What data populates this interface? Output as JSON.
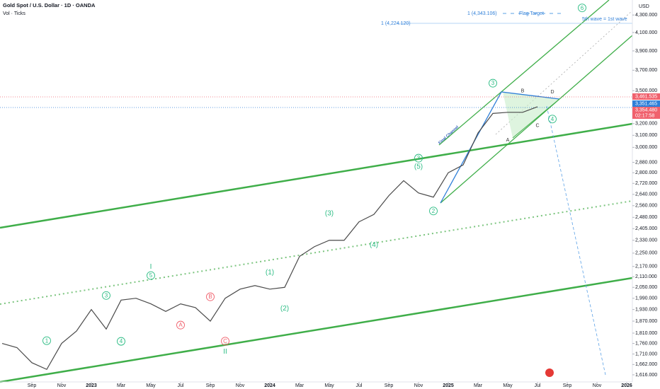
{
  "chart_data": {
    "type": "line",
    "title": "Gold Spot / U.S. Dollar · 1D · OANDA",
    "subtitle": "Vol · Ticks",
    "y_axis_label": "USD",
    "log_scale": true,
    "color": "#4a4a4a",
    "x": [
      "2022-07",
      "2022-08",
      "2022-09",
      "2022-10",
      "2022-11",
      "2022-12",
      "2023-01",
      "2023-02",
      "2023-03",
      "2023-04",
      "2023-05",
      "2023-06",
      "2023-07",
      "2023-08",
      "2023-09",
      "2023-10",
      "2023-11",
      "2023-12",
      "2024-01",
      "2024-02",
      "2024-03",
      "2024-04",
      "2024-05",
      "2024-06",
      "2024-07",
      "2024-08",
      "2024-09",
      "2024-10",
      "2024-11",
      "2024-12",
      "2025-01",
      "2025-02",
      "2025-03",
      "2025-04",
      "2025-05",
      "2025-06",
      "2025-07"
    ],
    "values": [
      1760,
      1740,
      1670,
      1640,
      1760,
      1820,
      1930,
      1830,
      1980,
      1990,
      1960,
      1920,
      1960,
      1940,
      1870,
      1990,
      2040,
      2060,
      2040,
      2050,
      2230,
      2290,
      2330,
      2330,
      2450,
      2500,
      2630,
      2740,
      2650,
      2620,
      2800,
      2860,
      3120,
      3290,
      3300,
      3300,
      3350
    ],
    "ylim": [
      1585,
      4479
    ],
    "yticks": [
      {
        "value": 1616,
        "label": "1,616.000"
      },
      {
        "value": 1662,
        "label": "1,662.000"
      },
      {
        "value": 1710,
        "label": "1,710.000"
      },
      {
        "value": 1760,
        "label": "1,760.000"
      },
      {
        "value": 1810,
        "label": "1,810.000"
      },
      {
        "value": 1870,
        "label": "1,870.000"
      },
      {
        "value": 1930,
        "label": "1,930.000"
      },
      {
        "value": 1990,
        "label": "1,990.000"
      },
      {
        "value": 2050,
        "label": "2,050.000"
      },
      {
        "value": 2110,
        "label": "2,110.000"
      },
      {
        "value": 2170,
        "label": "2,170.000"
      },
      {
        "value": 2250,
        "label": "2,250.000"
      },
      {
        "value": 2330,
        "label": "2,330.000"
      },
      {
        "value": 2405,
        "label": "2,405.000"
      },
      {
        "value": 2480,
        "label": "2,480.000"
      },
      {
        "value": 2560,
        "label": "2,560.000"
      },
      {
        "value": 2640,
        "label": "2,640.000"
      },
      {
        "value": 2720,
        "label": "2,720.000"
      },
      {
        "value": 2800,
        "label": "2,800.000"
      },
      {
        "value": 2880,
        "label": "2,880.000"
      },
      {
        "value": 3000,
        "label": "3,000.000"
      },
      {
        "value": 3100,
        "label": "3,100.000"
      },
      {
        "value": 3200,
        "label": "3,200.000"
      },
      {
        "value": 3500,
        "label": "3,500.000"
      },
      {
        "value": 3700,
        "label": "3,700.000"
      },
      {
        "value": 3900,
        "label": "3,900.000"
      },
      {
        "value": 4100,
        "label": "4,100.000"
      },
      {
        "value": 4300,
        "label": "4,300.000"
      }
    ],
    "xticks": [
      {
        "value": "2022-09",
        "label": "Sep"
      },
      {
        "value": "2022-11",
        "label": "Nov"
      },
      {
        "value": "2023-01",
        "label": "2023"
      },
      {
        "value": "2023-03",
        "label": "Mar"
      },
      {
        "value": "2023-05",
        "label": "May"
      },
      {
        "value": "2023-07",
        "label": "Jul"
      },
      {
        "value": "2023-09",
        "label": "Sep"
      },
      {
        "value": "2023-11",
        "label": "Nov"
      },
      {
        "value": "2024-01",
        "label": "2024"
      },
      {
        "value": "2024-03",
        "label": "Mar"
      },
      {
        "value": "2024-05",
        "label": "May"
      },
      {
        "value": "2024-07",
        "label": "Jul"
      },
      {
        "value": "2024-09",
        "label": "Sep"
      },
      {
        "value": "2024-11",
        "label": "Nov"
      },
      {
        "value": "2025-01",
        "label": "2025"
      },
      {
        "value": "2025-03",
        "label": "Mar"
      },
      {
        "value": "2025-05",
        "label": "May"
      },
      {
        "value": "2025-07",
        "label": "Jul"
      },
      {
        "value": "2025-09",
        "label": "Sep"
      },
      {
        "value": "2025-11",
        "label": "Nov"
      },
      {
        "value": "2026-01",
        "label": "2026"
      }
    ],
    "annotations": [
      {
        "text": "1",
        "x": "2022-10",
        "y": 1773,
        "color": "#2ebd85",
        "style": "circle"
      },
      {
        "text": "3",
        "x": "2023-02",
        "y": 2005,
        "color": "#2ebd85",
        "style": "circle"
      },
      {
        "text": "4",
        "x": "2023-03",
        "y": 1770,
        "color": "#2ebd85",
        "style": "circle"
      },
      {
        "text": "5",
        "x": "2023-05",
        "y": 2117,
        "color": "#2ebd85",
        "style": "circle"
      },
      {
        "text": "I",
        "x": "2023-05",
        "y": 2170,
        "color": "#2ebd85",
        "style": "plain"
      },
      {
        "text": "A",
        "x": "2023-07",
        "y": 1850,
        "color": "#f0616d",
        "style": "circle"
      },
      {
        "text": "B",
        "x": "2023-09",
        "y": 1998,
        "color": "#f0616d",
        "style": "circle"
      },
      {
        "text": "C",
        "x": "2023-10",
        "y": 1771,
        "color": "#f0616d",
        "style": "circle"
      },
      {
        "text": "II",
        "x": "2023-10",
        "y": 1722,
        "color": "#2ebd85",
        "style": "plain"
      },
      {
        "text": "(1)",
        "x": "2024-01",
        "y": 2137,
        "color": "#2ebd85",
        "style": "plain"
      },
      {
        "text": "(2)",
        "x": "2024-02",
        "y": 1937,
        "color": "#2ebd85",
        "style": "plain"
      },
      {
        "text": "(3)",
        "x": "2024-05",
        "y": 2508,
        "color": "#2ebd85",
        "style": "plain"
      },
      {
        "text": "(4)",
        "x": "2024-08",
        "y": 2302,
        "color": "#2ebd85",
        "style": "plain"
      },
      {
        "text": "3",
        "x": "2024-11",
        "y": 2913,
        "color": "#2ebd85",
        "style": "circle"
      },
      {
        "text": "(5)",
        "x": "2024-11",
        "y": 2848,
        "color": "#2ebd85",
        "style": "plain"
      },
      {
        "text": "2",
        "x": "2024-12",
        "y": 2523,
        "color": "#2ebd85",
        "style": "circle"
      },
      {
        "text": "3",
        "x": "2025-04",
        "y": 3572,
        "color": "#2ebd85",
        "style": "circle"
      },
      {
        "text": "A",
        "x": "2025-05",
        "y": 3062,
        "color": "#333333",
        "style": "small"
      },
      {
        "text": "B",
        "x": "2025-06",
        "y": 3499,
        "color": "#333333",
        "style": "small"
      },
      {
        "text": "C",
        "x": "2025-07",
        "y": 3184,
        "color": "#333333",
        "style": "small"
      },
      {
        "text": "D",
        "x": "2025-08",
        "y": 3490,
        "color": "#333333",
        "style": "small"
      },
      {
        "text": "4",
        "x": "2025-08",
        "y": 3240,
        "color": "#2ebd85",
        "style": "circle"
      },
      {
        "text": "6",
        "x": "2025-10",
        "y": 4384,
        "color": "#2ebd85",
        "style": "circle"
      }
    ],
    "drawing_labels": [
      "1 (4,343.106)",
      "Flag Target",
      "1 (4,224.120)",
      "5th wave = 1st wave",
      "Final Channel"
    ],
    "price_tags": [
      "3,461.535",
      "3,351.465",
      "3,354.480",
      "02:17:58"
    ]
  }
}
